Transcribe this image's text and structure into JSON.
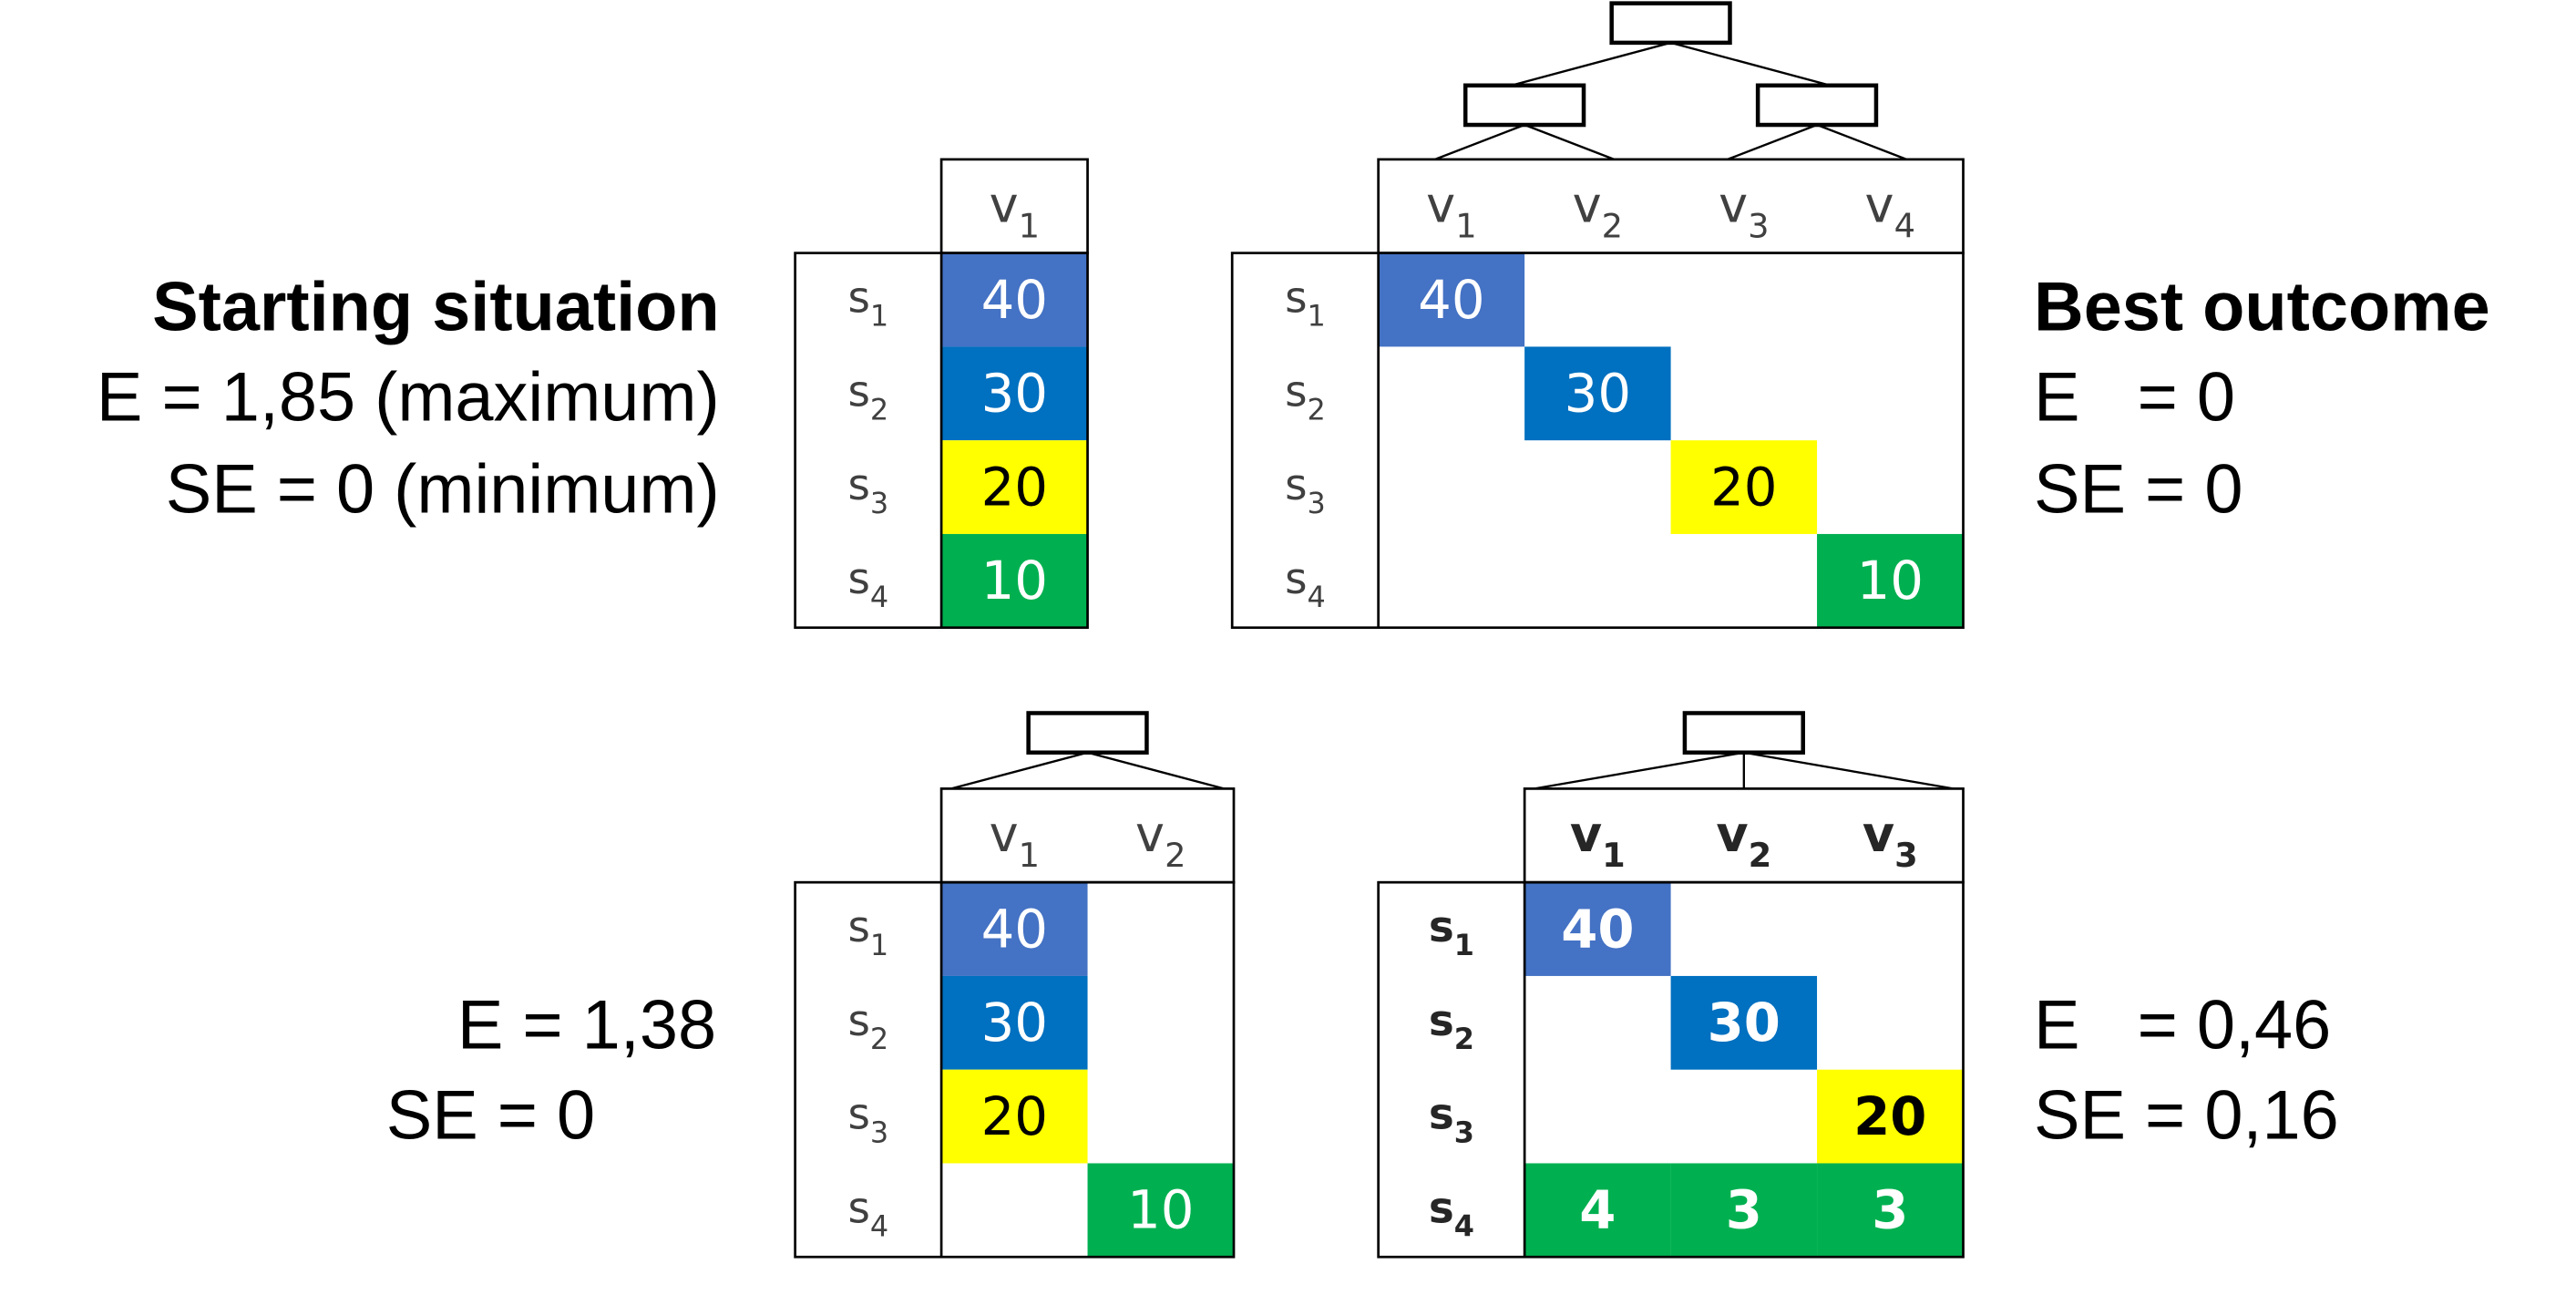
{
  "texts": {
    "start_title": "Starting situation",
    "start_e": "E = 1,85 (maximum)",
    "start_se": "SE = 0 (minimum)",
    "best_title": "Best outcome",
    "best_e": "E   = 0",
    "best_se": "SE = 0",
    "bl_e": "E = 1,38",
    "bl_se": "SE = 0",
    "br_e": "E   = 0,46",
    "br_se": "SE = 0,16"
  },
  "colors": {
    "blue_light": "#4472C4",
    "blue": "#0070C0",
    "yellow": "#FFFF00",
    "green": "#00B050",
    "line": "#000000",
    "label": "#404040"
  },
  "tables": [
    {
      "id": "top-left",
      "bold": false,
      "tree": "none",
      "cols": [
        {
          "base": "v",
          "sub": "1"
        }
      ],
      "rows": [
        {
          "base": "s",
          "sub": "1",
          "cells": [
            "40"
          ],
          "colors": [
            "blue_light"
          ]
        },
        {
          "base": "s",
          "sub": "2",
          "cells": [
            "30"
          ],
          "colors": [
            "blue"
          ]
        },
        {
          "base": "s",
          "sub": "3",
          "cells": [
            "20"
          ],
          "colors": [
            "yellow"
          ]
        },
        {
          "base": "s",
          "sub": "4",
          "cells": [
            "10"
          ],
          "colors": [
            "green"
          ]
        }
      ]
    },
    {
      "id": "top-right",
      "bold": false,
      "tree": "binary",
      "cols": [
        {
          "base": "v",
          "sub": "1"
        },
        {
          "base": "v",
          "sub": "2"
        },
        {
          "base": "v",
          "sub": "3"
        },
        {
          "base": "v",
          "sub": "4"
        }
      ],
      "rows": [
        {
          "base": "s",
          "sub": "1",
          "cells": [
            "40",
            "",
            "",
            ""
          ],
          "colors": [
            "blue_light",
            "",
            "",
            ""
          ]
        },
        {
          "base": "s",
          "sub": "2",
          "cells": [
            "",
            "30",
            "",
            ""
          ],
          "colors": [
            "",
            "blue",
            "",
            ""
          ]
        },
        {
          "base": "s",
          "sub": "3",
          "cells": [
            "",
            "",
            "20",
            ""
          ],
          "colors": [
            "",
            "",
            "yellow",
            ""
          ]
        },
        {
          "base": "s",
          "sub": "4",
          "cells": [
            "",
            "",
            "",
            "10"
          ],
          "colors": [
            "",
            "",
            "",
            "green"
          ]
        }
      ]
    },
    {
      "id": "bottom-left",
      "bold": false,
      "tree": "fan",
      "cols": [
        {
          "base": "v",
          "sub": "1"
        },
        {
          "base": "v",
          "sub": "2"
        }
      ],
      "rows": [
        {
          "base": "s",
          "sub": "1",
          "cells": [
            "40",
            ""
          ],
          "colors": [
            "blue_light",
            ""
          ]
        },
        {
          "base": "s",
          "sub": "2",
          "cells": [
            "30",
            ""
          ],
          "colors": [
            "blue",
            ""
          ]
        },
        {
          "base": "s",
          "sub": "3",
          "cells": [
            "20",
            ""
          ],
          "colors": [
            "yellow",
            ""
          ]
        },
        {
          "base": "s",
          "sub": "4",
          "cells": [
            "",
            "10"
          ],
          "colors": [
            "",
            "green"
          ]
        }
      ]
    },
    {
      "id": "bottom-right",
      "bold": true,
      "tree": "fan",
      "cols": [
        {
          "base": "v",
          "sub": "1"
        },
        {
          "base": "v",
          "sub": "2"
        },
        {
          "base": "v",
          "sub": "3"
        }
      ],
      "rows": [
        {
          "base": "s",
          "sub": "1",
          "cells": [
            "40",
            "",
            ""
          ],
          "colors": [
            "blue_light",
            "",
            ""
          ]
        },
        {
          "base": "s",
          "sub": "2",
          "cells": [
            "",
            "30",
            ""
          ],
          "colors": [
            "",
            "blue",
            ""
          ]
        },
        {
          "base": "s",
          "sub": "3",
          "cells": [
            "",
            "",
            "20"
          ],
          "colors": [
            "",
            "",
            "yellow"
          ]
        },
        {
          "base": "s",
          "sub": "4",
          "cells": [
            "4",
            "3",
            "3"
          ],
          "colors": [
            "green",
            "green",
            "green"
          ]
        }
      ]
    }
  ]
}
